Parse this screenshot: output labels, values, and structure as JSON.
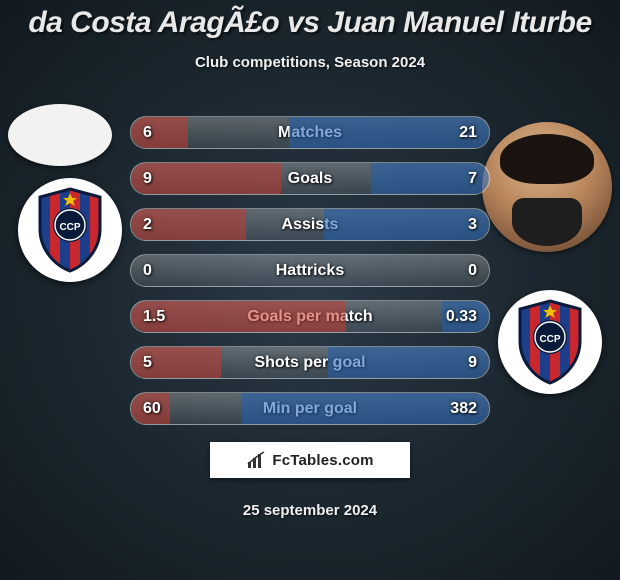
{
  "title": "da Costa AragÃ£o vs Juan Manuel Iturbe",
  "subtitle": "Club competitions, Season 2024",
  "date": "25 september 2024",
  "brand": "FcTables.com",
  "colors": {
    "left_fill": "#c53a2f",
    "right_fill": "#1f5fae",
    "bg_inner": "#2a3a47",
    "bg_outer": "#121a20",
    "row_border": "rgba(255,255,255,0.35)",
    "text_shadow": "rgba(0,0,0,0.8)"
  },
  "badge": {
    "stripe_red": "#c8272d",
    "stripe_blue": "#1d3e8a",
    "outline": "#0a1a3a",
    "star": "#f2c200",
    "inner_ring": "#ffffff"
  },
  "rows": [
    {
      "label": "Matches",
      "left": "6",
      "right": "21",
      "lpct": 16,
      "rpct": 56
    },
    {
      "label": "Goals",
      "left": "9",
      "right": "7",
      "lpct": 42,
      "rpct": 33
    },
    {
      "label": "Assists",
      "left": "2",
      "right": "3",
      "lpct": 32,
      "rpct": 46
    },
    {
      "label": "Hattricks",
      "left": "0",
      "right": "0",
      "lpct": 0,
      "rpct": 0
    },
    {
      "label": "Goals per match",
      "left": "1.5",
      "right": "0.33",
      "lpct": 60,
      "rpct": 13
    },
    {
      "label": "Shots per goal",
      "left": "5",
      "right": "9",
      "lpct": 25,
      "rpct": 45
    },
    {
      "label": "Min per goal",
      "left": "60",
      "right": "382",
      "lpct": 11,
      "rpct": 69
    }
  ]
}
